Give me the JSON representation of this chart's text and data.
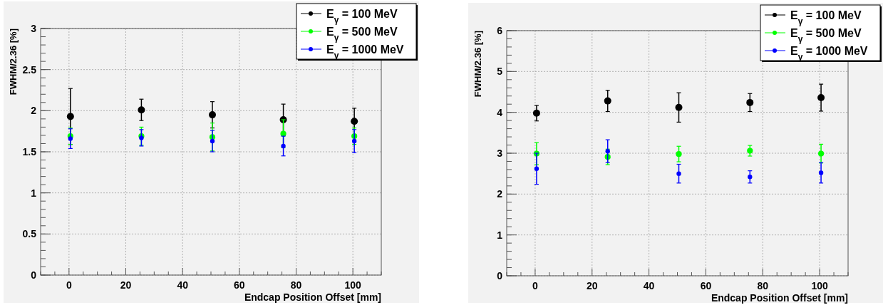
{
  "chart_data": [
    {
      "type": "scatter",
      "xlabel": "Endcap Position Offset [mm]",
      "ylabel": "FWHM/2.36 [%]",
      "xlim": [
        -10,
        110
      ],
      "xticks": [
        0,
        20,
        40,
        60,
        80,
        100
      ],
      "ylim": [
        0,
        3
      ],
      "yticks": [
        0,
        0.5,
        1,
        1.5,
        2,
        2.5,
        3
      ],
      "grid": true,
      "legend": "top right",
      "marker": "circle",
      "x": [
        0.5,
        25.5,
        50.5,
        75.5,
        100.5
      ],
      "series": [
        {
          "name": "E$_{γ}$ = 100 MeV",
          "color": "#000000",
          "values": [
            1.93,
            2.01,
            1.95,
            1.89,
            1.87
          ],
          "errors": [
            0.34,
            0.13,
            0.16,
            0.19,
            0.16
          ]
        },
        {
          "name": "E$_{γ}$ = 500 MeV",
          "color": "#00ff00",
          "values": [
            1.69,
            1.69,
            1.68,
            1.72,
            1.69
          ],
          "errors": [
            0.1,
            0.11,
            0.17,
            0.17,
            0.1
          ]
        },
        {
          "name": "E$_{γ}$ = 1000 MeV",
          "color": "#0000ff",
          "values": [
            1.66,
            1.67,
            1.63,
            1.57,
            1.63
          ],
          "errors": [
            0.12,
            0.1,
            0.13,
            0.12,
            0.14
          ]
        }
      ]
    },
    {
      "type": "scatter",
      "xlabel": "Endcap Position Offset [mm]",
      "ylabel": "FWHM/2.36 [%]",
      "xlim": [
        -10,
        110
      ],
      "xticks": [
        0,
        20,
        40,
        60,
        80,
        100
      ],
      "ylim": [
        0,
        6
      ],
      "yticks": [
        0,
        1,
        2,
        3,
        4,
        5,
        6
      ],
      "grid": true,
      "legend": "top right",
      "marker": "circle",
      "x": [
        0.5,
        25.5,
        50.5,
        75.5,
        100.5
      ],
      "series": [
        {
          "name": "E$_{γ}$ = 100 MeV",
          "color": "#000000",
          "values": [
            3.98,
            4.28,
            4.12,
            4.24,
            4.36
          ],
          "errors": [
            0.19,
            0.26,
            0.36,
            0.22,
            0.33
          ]
        },
        {
          "name": "E$_{γ}$ = 500 MeV",
          "color": "#00ff00",
          "values": [
            2.99,
            2.91,
            2.98,
            3.06,
            2.99
          ],
          "errors": [
            0.27,
            0.19,
            0.19,
            0.13,
            0.23
          ]
        },
        {
          "name": "E$_{γ}$ = 1000 MeV",
          "color": "#0000ff",
          "values": [
            2.62,
            3.05,
            2.5,
            2.42,
            2.52
          ],
          "errors": [
            0.38,
            0.28,
            0.23,
            0.15,
            0.25
          ]
        }
      ]
    }
  ]
}
